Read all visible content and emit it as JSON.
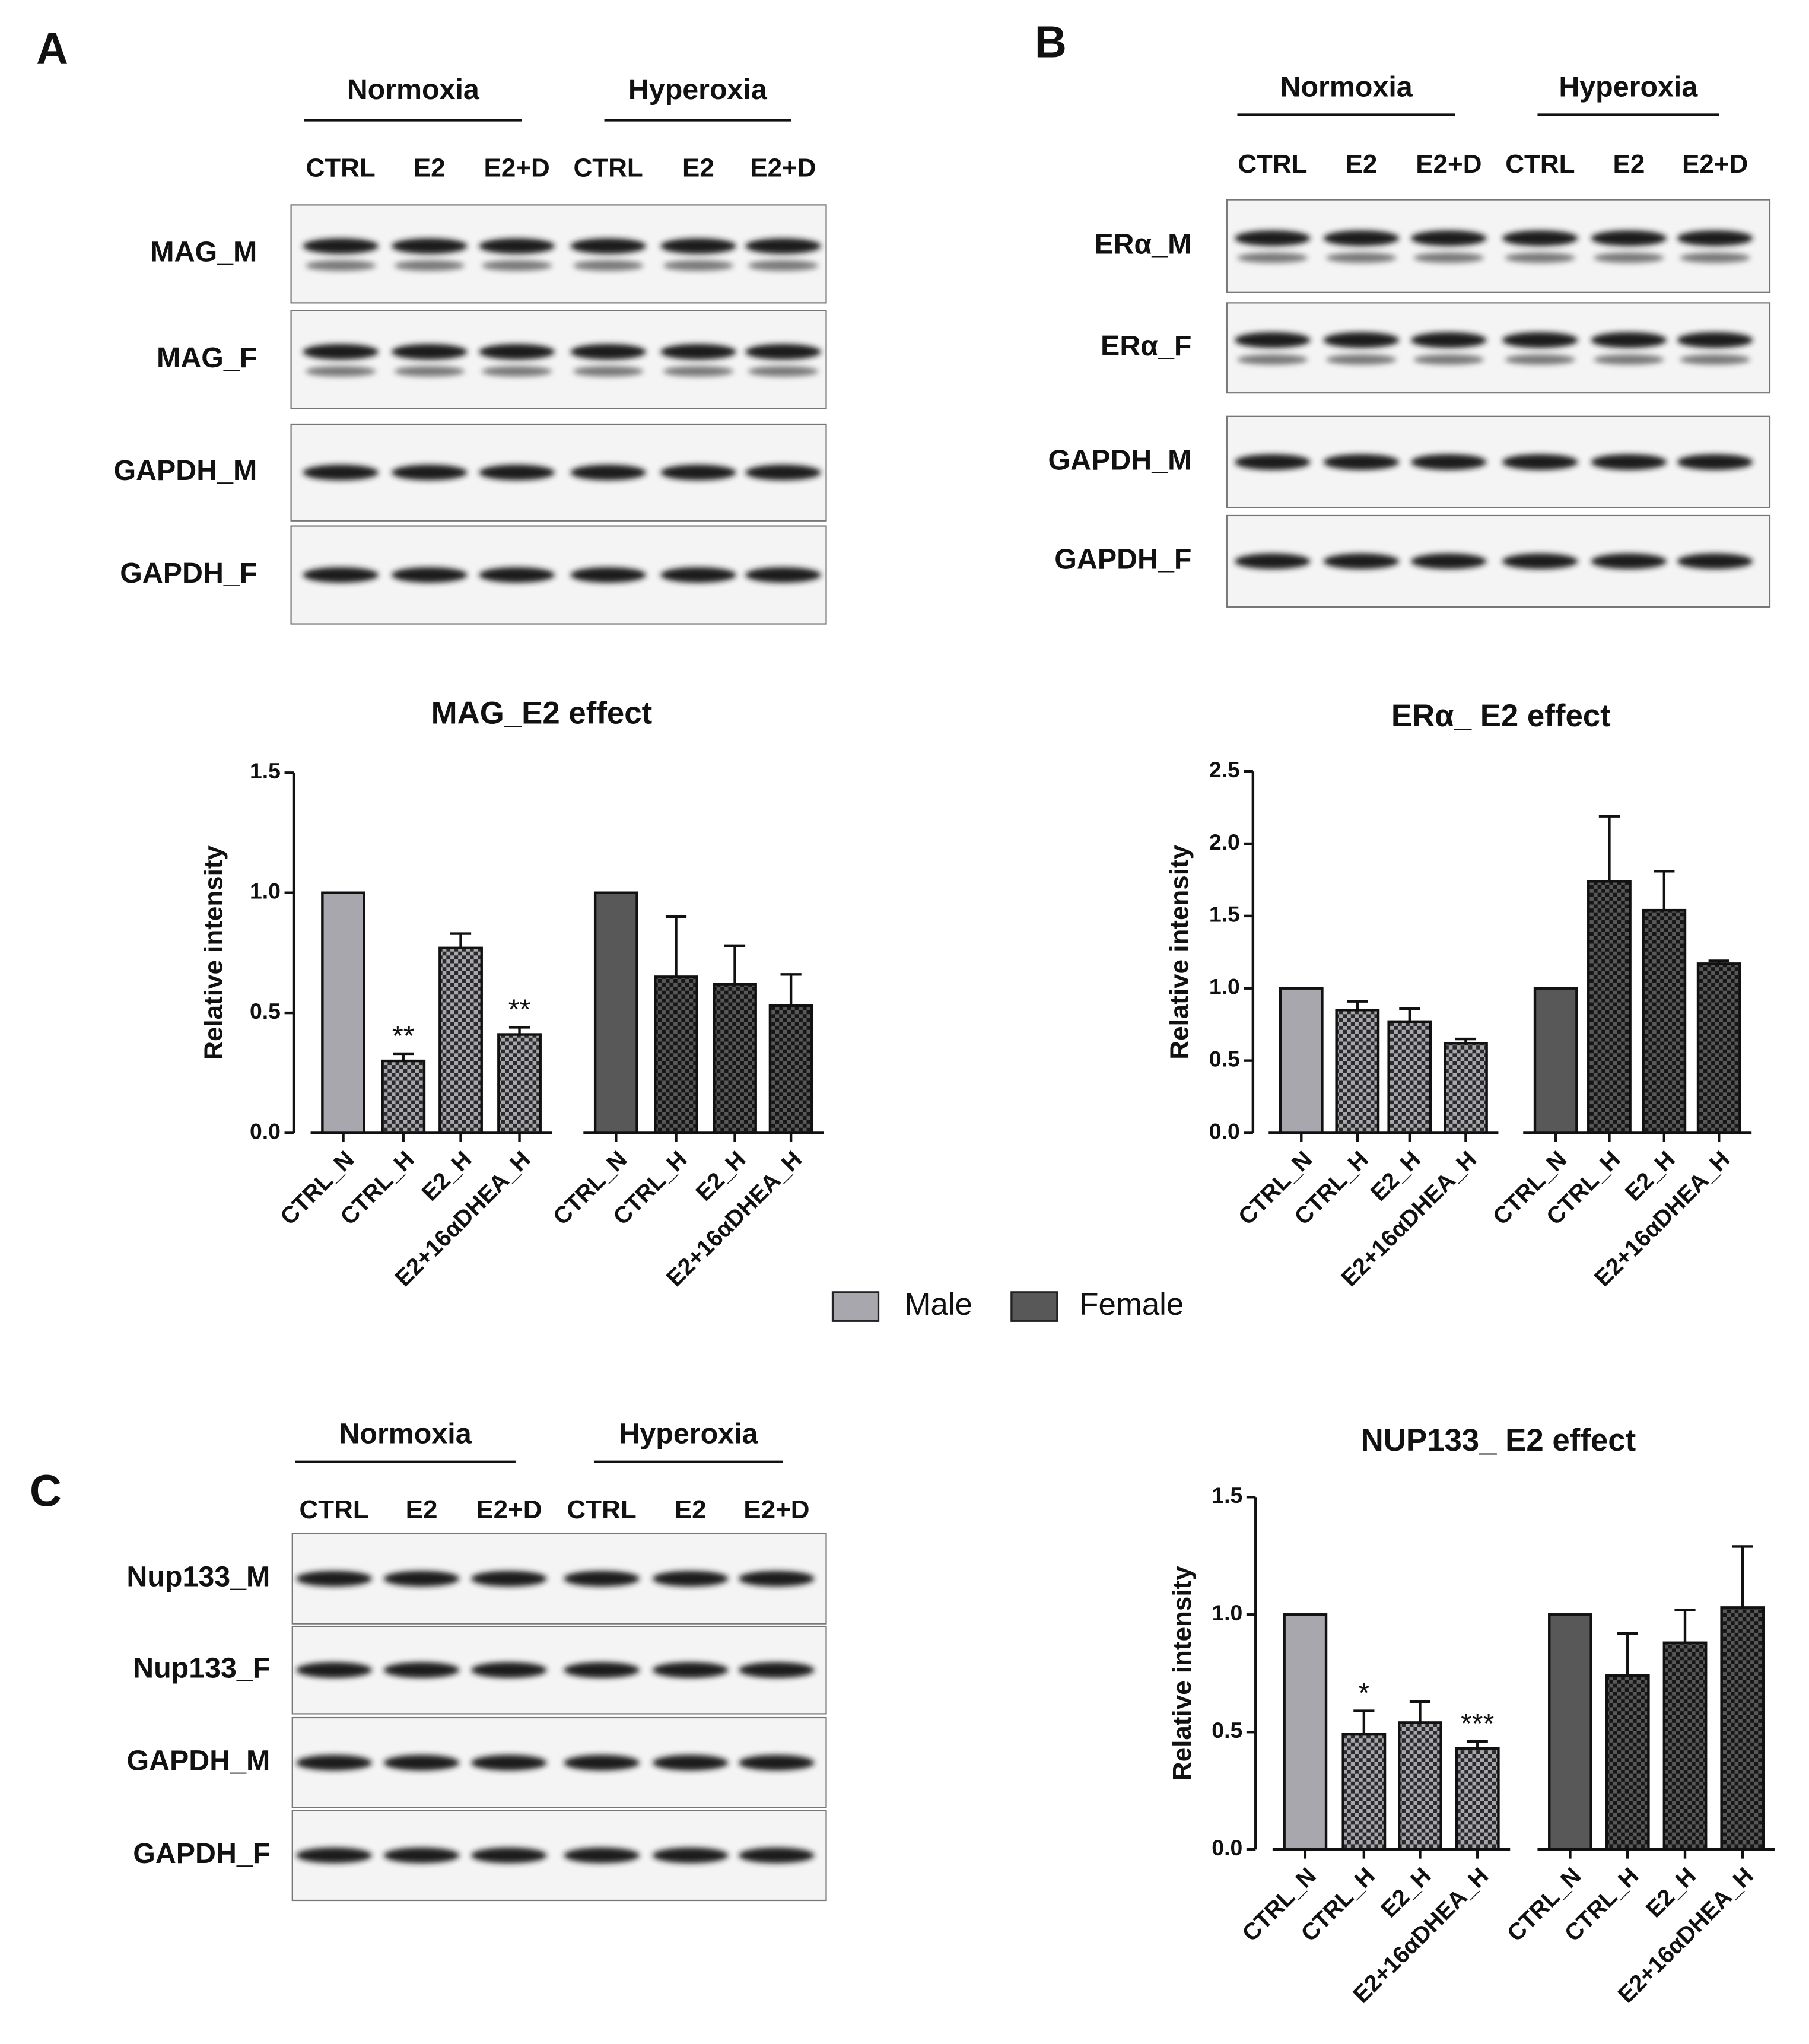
{
  "panel_letters": [
    "A",
    "B",
    "C"
  ],
  "blots": [
    {
      "groups": [
        "Normoxia",
        "Hyperoxia"
      ],
      "lanes": [
        "CTRL",
        "E2",
        "E2+D",
        "CTRL",
        "E2",
        "E2+D"
      ],
      "rows": [
        "MAG_M",
        "MAG_F",
        "GAPDH_M",
        "GAPDH_F"
      ]
    },
    {
      "groups": [
        "Normoxia",
        "Hyperoxia"
      ],
      "lanes": [
        "CTRL",
        "E2",
        "E2+D",
        "CTRL",
        "E2",
        "E2+D"
      ],
      "rows": [
        "ERα_M",
        "ERα_F",
        "GAPDH_M",
        "GAPDH_F"
      ]
    },
    {
      "groups": [
        "Normoxia",
        "Hyperoxia"
      ],
      "lanes": [
        "CTRL",
        "E2",
        "E2+D",
        "CTRL",
        "E2",
        "E2+D"
      ],
      "rows": [
        "Nup133_M",
        "Nup133_F",
        "GAPDH_M",
        "GAPDH_F"
      ]
    }
  ],
  "legend": [
    {
      "name": "Male",
      "color": "#a7a7ad"
    },
    {
      "name": "Female",
      "color": "#585858"
    }
  ],
  "chart_data": [
    {
      "type": "bar",
      "title": "MAG_E2 effect",
      "y_label": "Relative intensity",
      "ylim": [
        0,
        1.5
      ],
      "yticks": [
        {
          "value": 0,
          "label": "0.0"
        },
        {
          "value": 0.5,
          "label": "0.5"
        },
        {
          "value": 1,
          "label": "1.0"
        },
        {
          "value": 1.5,
          "label": "1.5"
        }
      ],
      "groups": [
        {
          "color": "#a7a7ad",
          "categories": [
            "CTRL_N",
            "CTRL_H",
            "E2_H",
            "E2+16αDHEA_H"
          ],
          "values": [
            1,
            0.3,
            0.77,
            0.41
          ],
          "errors": [
            0,
            0.03,
            0.06,
            0.03
          ],
          "annotations": [
            null,
            "**",
            null,
            "**"
          ]
        },
        {
          "color": "#585858",
          "categories": [
            "CTRL_N",
            "CTRL_H",
            "E2_H",
            "E2+16αDHEA_H"
          ],
          "values": [
            1,
            0.65,
            0.62,
            0.53
          ],
          "errors": [
            0,
            0.25,
            0.16,
            0.13
          ]
        }
      ]
    },
    {
      "type": "bar",
      "title": "ERα_ E2 effect",
      "y_label": "Relative intensity",
      "ylim": [
        0,
        2.5
      ],
      "yticks": [
        {
          "value": 0,
          "label": "0.0"
        },
        {
          "value": 0.5,
          "label": "0.5"
        },
        {
          "value": 1,
          "label": "1.0"
        },
        {
          "value": 1.5,
          "label": "1.5"
        },
        {
          "value": 2,
          "label": "2.0"
        },
        {
          "value": 2.5,
          "label": "2.5"
        }
      ],
      "groups": [
        {
          "color": "#a7a7ad",
          "categories": [
            "CTRL_N",
            "CTRL_H",
            "E2_H",
            "E2+16αDHEA_H"
          ],
          "values": [
            1,
            0.85,
            0.77,
            0.62
          ],
          "errors": [
            0,
            0.06,
            0.09,
            0.03
          ]
        },
        {
          "color": "#585858",
          "categories": [
            "CTRL_N",
            "CTRL_H",
            "E2_H",
            "E2+16αDHEA_H"
          ],
          "values": [
            1,
            1.74,
            1.54,
            1.17
          ],
          "errors": [
            0,
            0.45,
            0.27,
            0.02
          ]
        }
      ]
    },
    {
      "type": "bar",
      "title": "NUP133_ E2 effect",
      "y_label": "Relative intensity",
      "ylim": [
        0,
        1.5
      ],
      "yticks": [
        {
          "value": 0,
          "label": "0.0"
        },
        {
          "value": 0.5,
          "label": "0.5"
        },
        {
          "value": 1,
          "label": "1.0"
        },
        {
          "value": 1.5,
          "label": "1.5"
        }
      ],
      "groups": [
        {
          "color": "#a7a7ad",
          "categories": [
            "CTRL_N",
            "CTRL_H",
            "E2_H",
            "E2+16αDHEA_H"
          ],
          "values": [
            1,
            0.49,
            0.54,
            0.43
          ],
          "errors": [
            0,
            0.1,
            0.09,
            0.03
          ],
          "annotations": [
            null,
            "*",
            null,
            "***"
          ]
        },
        {
          "color": "#585858",
          "categories": [
            "CTRL_N",
            "CTRL_H",
            "E2_H",
            "E2+16αDHEA_H"
          ],
          "values": [
            1,
            0.74,
            0.88,
            1.03
          ],
          "errors": [
            0,
            0.18,
            0.14,
            0.26
          ]
        }
      ]
    }
  ]
}
